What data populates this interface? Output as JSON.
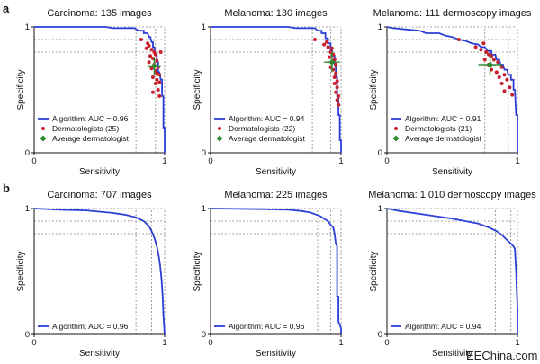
{
  "figure": {
    "panel_labels": [
      "a",
      "b"
    ],
    "watermark": "EEChina.com"
  },
  "colors": {
    "curve": "#2b3fd6",
    "dermatologist": "#c8202a",
    "average": "#2f8a2f",
    "grid": "#888888",
    "axis": "#111111"
  },
  "chart_data": [
    {
      "id": "a1",
      "type": "line",
      "title": "Carcinoma: 135 images",
      "xlabel": "Sensitivity",
      "ylabel": "Specificity",
      "xlim": [
        0,
        1
      ],
      "ylim": [
        0,
        1
      ],
      "x_ticks": [
        "0",
        "1"
      ],
      "y_ticks": [
        "0",
        "1"
      ],
      "reference_lines": {
        "x": [
          0.78,
          0.93
        ],
        "y": [
          0.9,
          0.8
        ]
      },
      "series": [
        {
          "name": "Algorithm: AUC = 0.96",
          "points": [
            [
              0,
              1
            ],
            [
              0.55,
              1
            ],
            [
              0.6,
              0.99
            ],
            [
              0.77,
              0.99
            ],
            [
              0.8,
              0.97
            ],
            [
              0.84,
              0.97
            ],
            [
              0.84,
              0.95
            ],
            [
              0.87,
              0.95
            ],
            [
              0.88,
              0.92
            ],
            [
              0.89,
              0.92
            ],
            [
              0.9,
              0.88
            ],
            [
              0.91,
              0.88
            ],
            [
              0.91,
              0.84
            ],
            [
              0.92,
              0.84
            ],
            [
              0.93,
              0.78
            ],
            [
              0.94,
              0.78
            ],
            [
              0.94,
              0.72
            ],
            [
              0.95,
              0.72
            ],
            [
              0.95,
              0.64
            ],
            [
              0.96,
              0.64
            ],
            [
              0.97,
              0.58
            ],
            [
              0.98,
              0.58
            ],
            [
              0.98,
              0.45
            ],
            [
              0.99,
              0.45
            ],
            [
              0.99,
              0.2
            ],
            [
              1,
              0.2
            ],
            [
              1,
              0
            ]
          ]
        }
      ],
      "dermatologists": {
        "name": "Dermatologists (25)",
        "points": [
          [
            0.82,
            0.9
          ],
          [
            0.87,
            0.87
          ],
          [
            0.88,
            0.85
          ],
          [
            0.9,
            0.82
          ],
          [
            0.92,
            0.8
          ],
          [
            0.93,
            0.78
          ],
          [
            0.89,
            0.77
          ],
          [
            0.91,
            0.75
          ],
          [
            0.94,
            0.73
          ],
          [
            0.88,
            0.72
          ],
          [
            0.92,
            0.7
          ],
          [
            0.95,
            0.68
          ],
          [
            0.9,
            0.67
          ],
          [
            0.93,
            0.65
          ],
          [
            0.94,
            0.63
          ],
          [
            0.96,
            0.62
          ],
          [
            0.91,
            0.6
          ],
          [
            0.94,
            0.58
          ],
          [
            0.96,
            0.56
          ],
          [
            0.93,
            0.55
          ],
          [
            0.95,
            0.5
          ],
          [
            0.91,
            0.48
          ],
          [
            0.96,
            0.45
          ],
          [
            0.97,
            0.8
          ],
          [
            0.86,
            0.83
          ]
        ]
      },
      "average": {
        "name": "Average dermatologist",
        "point": [
          0.92,
          0.69
        ],
        "err_x": 0.05,
        "err_y": 0.07
      },
      "legend_location": "bottom-left"
    },
    {
      "id": "a2",
      "type": "line",
      "title": "Melanoma: 130 images",
      "xlabel": "Sensitivity",
      "ylabel": "Specificity",
      "xlim": [
        0,
        1
      ],
      "ylim": [
        0,
        1
      ],
      "x_ticks": [
        "0",
        "1"
      ],
      "y_ticks": [
        "0",
        "1"
      ],
      "reference_lines": {
        "x": [
          0.78,
          0.92
        ],
        "y": [
          0.9,
          0.8
        ]
      },
      "series": [
        {
          "name": "Algorithm: AUC = 0.94",
          "points": [
            [
              0,
              1
            ],
            [
              0.6,
              1
            ],
            [
              0.65,
              0.99
            ],
            [
              0.8,
              0.99
            ],
            [
              0.82,
              0.97
            ],
            [
              0.85,
              0.97
            ],
            [
              0.85,
              0.95
            ],
            [
              0.88,
              0.95
            ],
            [
              0.88,
              0.91
            ],
            [
              0.9,
              0.91
            ],
            [
              0.9,
              0.87
            ],
            [
              0.92,
              0.87
            ],
            [
              0.92,
              0.82
            ],
            [
              0.93,
              0.82
            ],
            [
              0.93,
              0.77
            ],
            [
              0.95,
              0.77
            ],
            [
              0.95,
              0.7
            ],
            [
              0.96,
              0.7
            ],
            [
              0.96,
              0.6
            ],
            [
              0.97,
              0.6
            ],
            [
              0.97,
              0.45
            ],
            [
              0.98,
              0.45
            ],
            [
              0.98,
              0.3
            ],
            [
              0.99,
              0.3
            ],
            [
              0.99,
              0.1
            ],
            [
              1,
              0.1
            ],
            [
              1,
              0
            ]
          ]
        }
      ],
      "dermatologists": {
        "name": "Dermatologists (22)",
        "points": [
          [
            0.8,
            0.9
          ],
          [
            0.87,
            0.86
          ],
          [
            0.9,
            0.84
          ],
          [
            0.93,
            0.83
          ],
          [
            0.92,
            0.8
          ],
          [
            0.94,
            0.78
          ],
          [
            0.91,
            0.76
          ],
          [
            0.95,
            0.74
          ],
          [
            0.93,
            0.72
          ],
          [
            0.96,
            0.7
          ],
          [
            0.92,
            0.68
          ],
          [
            0.94,
            0.66
          ],
          [
            0.96,
            0.63
          ],
          [
            0.95,
            0.6
          ],
          [
            0.97,
            0.57
          ],
          [
            0.95,
            0.55
          ],
          [
            0.97,
            0.52
          ],
          [
            0.96,
            0.48
          ],
          [
            0.98,
            0.45
          ],
          [
            0.97,
            0.42
          ],
          [
            0.98,
            0.38
          ],
          [
            0.89,
            0.88
          ]
        ]
      },
      "average": {
        "name": "Average dermatologist",
        "point": [
          0.93,
          0.72
        ],
        "err_x": 0.06,
        "err_y": 0.08
      },
      "legend_location": "bottom-left"
    },
    {
      "id": "a3",
      "type": "line",
      "title": "Melanoma: 111 dermoscopy images",
      "xlabel": "Sensitivity",
      "ylabel": "Specificity",
      "xlim": [
        0,
        1
      ],
      "ylim": [
        0,
        1
      ],
      "x_ticks": [
        "0",
        "1"
      ],
      "y_ticks": [
        "0",
        "1"
      ],
      "reference_lines": {
        "x": [
          0.75,
          0.93
        ],
        "y": [
          0.9,
          0.8
        ]
      },
      "series": [
        {
          "name": "Algorithm: AUC = 0.91",
          "points": [
            [
              0,
              1
            ],
            [
              0.05,
              0.99
            ],
            [
              0.15,
              0.98
            ],
            [
              0.25,
              0.97
            ],
            [
              0.3,
              0.95
            ],
            [
              0.4,
              0.95
            ],
            [
              0.45,
              0.93
            ],
            [
              0.5,
              0.92
            ],
            [
              0.55,
              0.9
            ],
            [
              0.6,
              0.89
            ],
            [
              0.65,
              0.87
            ],
            [
              0.7,
              0.86
            ],
            [
              0.72,
              0.84
            ],
            [
              0.75,
              0.84
            ],
            [
              0.77,
              0.81
            ],
            [
              0.8,
              0.81
            ],
            [
              0.8,
              0.78
            ],
            [
              0.83,
              0.78
            ],
            [
              0.84,
              0.74
            ],
            [
              0.86,
              0.74
            ],
            [
              0.87,
              0.7
            ],
            [
              0.89,
              0.7
            ],
            [
              0.9,
              0.66
            ],
            [
              0.92,
              0.66
            ],
            [
              0.93,
              0.62
            ],
            [
              0.95,
              0.62
            ],
            [
              0.95,
              0.58
            ],
            [
              0.97,
              0.58
            ],
            [
              0.97,
              0.5
            ],
            [
              0.98,
              0.5
            ],
            [
              0.99,
              0.3
            ],
            [
              1,
              0.3
            ],
            [
              1,
              0
            ]
          ]
        }
      ],
      "dermatologists": {
        "name": "Dermatologists (21)",
        "points": [
          [
            0.55,
            0.9
          ],
          [
            0.68,
            0.84
          ],
          [
            0.72,
            0.82
          ],
          [
            0.76,
            0.8
          ],
          [
            0.78,
            0.78
          ],
          [
            0.8,
            0.77
          ],
          [
            0.75,
            0.74
          ],
          [
            0.82,
            0.74
          ],
          [
            0.85,
            0.72
          ],
          [
            0.78,
            0.7
          ],
          [
            0.88,
            0.68
          ],
          [
            0.8,
            0.66
          ],
          [
            0.84,
            0.64
          ],
          [
            0.9,
            0.62
          ],
          [
            0.86,
            0.6
          ],
          [
            0.92,
            0.58
          ],
          [
            0.88,
            0.55
          ],
          [
            0.94,
            0.52
          ],
          [
            0.9,
            0.49
          ],
          [
            0.96,
            0.46
          ],
          [
            0.74,
            0.87
          ]
        ]
      },
      "average": {
        "name": "Average dermatologist",
        "point": [
          0.79,
          0.7
        ],
        "err_x": 0.09,
        "err_y": 0.08
      },
      "legend_location": "bottom-left"
    },
    {
      "id": "b1",
      "type": "line",
      "title": "Carcinoma: 707 images",
      "xlabel": "Sensitivity",
      "ylabel": "Specificity",
      "xlim": [
        0,
        1
      ],
      "ylim": [
        0,
        1
      ],
      "x_ticks": [
        "0",
        "1"
      ],
      "y_ticks": [
        "0",
        "1"
      ],
      "reference_lines": {
        "x": [
          0.78,
          0.9
        ],
        "y": [
          0.9,
          0.8
        ]
      },
      "series": [
        {
          "name": "Algorithm: AUC = 0.96",
          "points": [
            [
              0,
              1
            ],
            [
              0.2,
              0.99
            ],
            [
              0.4,
              0.985
            ],
            [
              0.5,
              0.975
            ],
            [
              0.6,
              0.965
            ],
            [
              0.7,
              0.95
            ],
            [
              0.78,
              0.93
            ],
            [
              0.84,
              0.9
            ],
            [
              0.88,
              0.86
            ],
            [
              0.9,
              0.82
            ],
            [
              0.92,
              0.77
            ],
            [
              0.94,
              0.7
            ],
            [
              0.955,
              0.62
            ],
            [
              0.965,
              0.55
            ],
            [
              0.975,
              0.45
            ],
            [
              0.985,
              0.3
            ],
            [
              0.99,
              0.15
            ],
            [
              1,
              0
            ]
          ]
        }
      ],
      "legend_location": "bottom-left"
    },
    {
      "id": "b2",
      "type": "line",
      "title": "Melanoma: 225 images",
      "xlabel": "Sensitivity",
      "ylabel": "Specificity",
      "xlim": [
        0,
        1
      ],
      "ylim": [
        0,
        1
      ],
      "x_ticks": [
        "0",
        "1"
      ],
      "y_ticks": [
        "0",
        "1"
      ],
      "reference_lines": {
        "x": [
          0.82,
          0.92
        ],
        "y": [
          0.9,
          0.8
        ]
      },
      "series": [
        {
          "name": "Algorithm: AUC = 0.96",
          "points": [
            [
              0,
              1
            ],
            [
              0.4,
              0.995
            ],
            [
              0.6,
              0.99
            ],
            [
              0.7,
              0.98
            ],
            [
              0.76,
              0.97
            ],
            [
              0.8,
              0.955
            ],
            [
              0.84,
              0.94
            ],
            [
              0.87,
              0.92
            ],
            [
              0.9,
              0.9
            ],
            [
              0.92,
              0.87
            ],
            [
              0.94,
              0.85
            ],
            [
              0.95,
              0.8
            ],
            [
              0.96,
              0.72
            ],
            [
              0.97,
              0.7
            ],
            [
              0.97,
              0.3
            ],
            [
              0.98,
              0.3
            ],
            [
              0.98,
              0.1
            ],
            [
              1,
              0.05
            ],
            [
              1,
              0
            ]
          ]
        }
      ],
      "legend_location": "bottom-left"
    },
    {
      "id": "b3",
      "type": "line",
      "title": "Melanoma: 1,010 dermoscopy images",
      "xlabel": "Sensitivity",
      "ylabel": "Specificity",
      "xlim": [
        0,
        1
      ],
      "ylim": [
        0,
        1
      ],
      "x_ticks": [
        "0",
        "1"
      ],
      "y_ticks": [
        "0",
        "1"
      ],
      "reference_lines": {
        "x": [
          0.83,
          0.95
        ],
        "y": [
          0.9,
          0.8
        ]
      },
      "series": [
        {
          "name": "Algorithm: AUC = 0.94",
          "points": [
            [
              0,
              1
            ],
            [
              0.1,
              0.98
            ],
            [
              0.2,
              0.965
            ],
            [
              0.3,
              0.95
            ],
            [
              0.4,
              0.935
            ],
            [
              0.5,
              0.92
            ],
            [
              0.6,
              0.9
            ],
            [
              0.7,
              0.88
            ],
            [
              0.78,
              0.85
            ],
            [
              0.84,
              0.82
            ],
            [
              0.88,
              0.79
            ],
            [
              0.92,
              0.75
            ],
            [
              0.95,
              0.72
            ],
            [
              0.97,
              0.7
            ],
            [
              0.98,
              0.68
            ],
            [
              0.99,
              0.5
            ],
            [
              1,
              0.2
            ],
            [
              1,
              0
            ]
          ]
        }
      ],
      "legend_location": "bottom-left"
    }
  ]
}
